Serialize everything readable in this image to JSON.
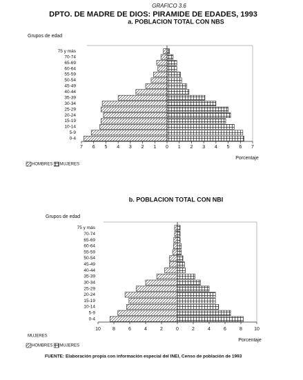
{
  "header": {
    "label": "GRAFICO 3.6",
    "title": "DPTO.  DE   MADRE DE DIOS: PIRAMIDE DE EDADES, 1993"
  },
  "chart_data": [
    {
      "type": "pyramid",
      "title": "a. POBLACION TOTAL CON  NBS",
      "ylabel": "Grupos de edad",
      "xlabel": "Porcentaje",
      "categories": [
        "75 y más",
        "70-74",
        "65-69",
        "60-64",
        "55-59",
        "50-54",
        "45-49",
        "40-44",
        "35-39",
        "30-34",
        "25-29",
        "20-24",
        "15-19",
        "10-14",
        "5-9",
        "0-4"
      ],
      "series": [
        {
          "name": "HOMBRES",
          "color": "#222222",
          "hatch": "diagonal",
          "values": [
            0.3,
            0.5,
            0.85,
            0.75,
            1.1,
            1.3,
            1.75,
            2.55,
            4.0,
            5.3,
            5.4,
            5.2,
            5.4,
            5.5,
            6.2,
            6.8
          ]
        },
        {
          "name": "MUJERES",
          "color": "#222222",
          "hatch": "grid",
          "values": [
            0.2,
            0.5,
            0.8,
            0.8,
            1.1,
            1.2,
            1.6,
            1.8,
            3.1,
            4.0,
            5.0,
            5.2,
            4.8,
            5.5,
            6.2,
            6.3
          ]
        }
      ],
      "xlim": [
        -7,
        7
      ],
      "xticks": [
        {
          "value": -7,
          "label": "7"
        },
        {
          "value": -6,
          "label": "6"
        },
        {
          "value": -5,
          "label": "5"
        },
        {
          "value": -4,
          "label": "4"
        },
        {
          "value": -3,
          "label": "3"
        },
        {
          "value": -2,
          "label": "2"
        },
        {
          "value": -1,
          "label": "1"
        },
        0,
        1,
        2,
        3,
        4,
        5,
        6,
        7
      ]
    },
    {
      "type": "pyramid",
      "title": "b. POBLACION  TOTAL  CON  NBI",
      "ylabel": "Grupos de edad",
      "xlabel": "Porcentaje",
      "annotation": "MUJERES",
      "categories": [
        "75 y más",
        "70-74",
        "65-69",
        "60-64",
        "55-59",
        "50-54",
        "45-49",
        "40-44",
        "35-39",
        "30-34",
        "25-29",
        "20-24",
        "15-19",
        "10-14",
        "5-9",
        "0-4"
      ],
      "series": [
        {
          "name": "HOMBRES",
          "color": "#222222",
          "hatch": "diagonal",
          "values": [
            0.35,
            0.35,
            0.45,
            0.5,
            0.6,
            1.0,
            1.0,
            1.6,
            2.6,
            4.0,
            5.2,
            6.6,
            6.1,
            6.4,
            7.5,
            8.5
          ]
        },
        {
          "name": "MUJERES",
          "color": "#222222",
          "hatch": "grid",
          "values": [
            0.35,
            0.35,
            0.35,
            0.5,
            0.5,
            0.7,
            0.9,
            1.0,
            2.2,
            2.9,
            4.0,
            4.8,
            4.8,
            5.2,
            6.7,
            8.3
          ]
        }
      ],
      "xlim": [
        -10,
        10
      ],
      "xticks": [
        {
          "value": -10,
          "label": "10"
        },
        {
          "value": -8,
          "label": "8"
        },
        {
          "value": -6,
          "label": "6"
        },
        {
          "value": -4,
          "label": "4"
        },
        {
          "value": -2,
          "label": "2"
        },
        0,
        2,
        4,
        6,
        8,
        10
      ]
    }
  ],
  "footer": {
    "source": "FUENTE: Elaboración propia con información especial del INEI, Censo de población de 1993"
  }
}
